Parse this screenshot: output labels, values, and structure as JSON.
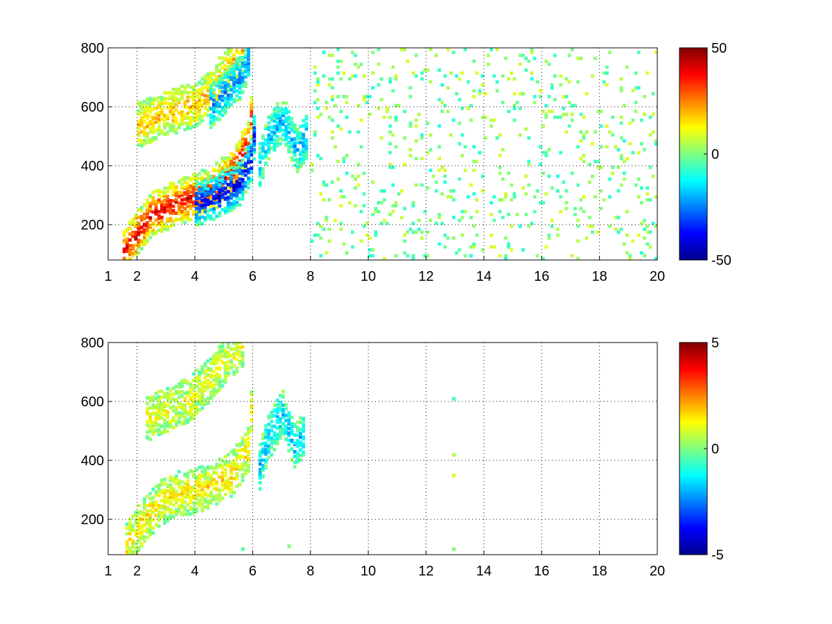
{
  "figure": {
    "background": "#ffffff",
    "colormap": "jet",
    "colormap_stops": [
      "#00008f",
      "#0000ff",
      "#00ffff",
      "#ffff00",
      "#ff0000",
      "#800000"
    ]
  },
  "chart_data": [
    {
      "type": "heatmap",
      "title": "",
      "xlabel": "",
      "ylabel": "",
      "xlim": [
        1,
        20
      ],
      "ylim": [
        80,
        800
      ],
      "x_ticks": [
        1,
        2,
        4,
        6,
        8,
        10,
        12,
        14,
        16,
        18,
        20
      ],
      "x_tick_labels": [
        "1",
        "2",
        "4",
        "6",
        "8",
        "10",
        "12",
        "14",
        "16",
        "18",
        "20"
      ],
      "y_ticks": [
        200,
        400,
        600,
        800
      ],
      "y_tick_labels": [
        "200",
        "400",
        "600",
        "800"
      ],
      "grid": true,
      "colorbar": {
        "clim": [
          -50,
          50
        ],
        "ticks": [
          -50,
          0,
          50
        ],
        "tick_labels": [
          "-50",
          "0",
          "50"
        ]
      },
      "features": [
        {
          "description": "positive band rising along lower branch",
          "value": 40,
          "points": [
            [
              1.5,
              110
            ],
            [
              2.5,
              240
            ],
            [
              3.5,
              280
            ],
            [
              4.5,
              320
            ],
            [
              5.3,
              380
            ],
            [
              5.8,
              480
            ],
            [
              5.9,
              560
            ]
          ]
        },
        {
          "description": "negative band just below lower branch",
          "value": -40,
          "points": [
            [
              4.0,
              270
            ],
            [
              4.8,
              300
            ],
            [
              5.5,
              340
            ],
            [
              5.9,
              420
            ],
            [
              6.0,
              500
            ]
          ]
        },
        {
          "description": "upper positive branch",
          "value": 20,
          "points": [
            [
              2.0,
              540
            ],
            [
              3.0,
              580
            ],
            [
              4.0,
              610
            ],
            [
              4.6,
              660
            ],
            [
              5.0,
              720
            ],
            [
              5.6,
              790
            ]
          ]
        },
        {
          "description": "upper negative branch",
          "value": -25,
          "points": [
            [
              4.5,
              600
            ],
            [
              5.0,
              650
            ],
            [
              5.5,
              700
            ],
            [
              5.8,
              760
            ]
          ]
        },
        {
          "description": "cyan cloud beyond x=6",
          "value": -20,
          "points": [
            [
              6.2,
              400
            ],
            [
              6.5,
              500
            ],
            [
              7.0,
              560
            ],
            [
              7.5,
              450
            ],
            [
              7.8,
              500
            ]
          ]
        }
      ],
      "sparse_noise": {
        "x_range": [
          8,
          20
        ],
        "values": [
          -10,
          10
        ],
        "density": 0.08
      }
    },
    {
      "type": "heatmap",
      "title": "",
      "xlabel": "",
      "ylabel": "",
      "xlim": [
        1,
        20
      ],
      "ylim": [
        80,
        800
      ],
      "x_ticks": [
        1,
        2,
        4,
        6,
        8,
        10,
        12,
        14,
        16,
        18,
        20
      ],
      "x_tick_labels": [
        "1",
        "2",
        "4",
        "6",
        "8",
        "10",
        "12",
        "14",
        "16",
        "18",
        "20"
      ],
      "y_ticks": [
        200,
        400,
        600,
        800
      ],
      "y_tick_labels": [
        "200",
        "400",
        "600",
        "800"
      ],
      "grid": true,
      "colorbar": {
        "clim": [
          -5,
          5
        ],
        "ticks": [
          -5,
          0,
          5
        ],
        "tick_labels": [
          "-5",
          "0",
          "5"
        ]
      },
      "features": [
        {
          "description": "lower branch, mostly near zero with warm patches",
          "value": 1.5,
          "points": [
            [
              1.6,
              110
            ],
            [
              2.2,
              200
            ],
            [
              2.8,
              260
            ],
            [
              3.5,
              290
            ],
            [
              4.5,
              310
            ],
            [
              5.3,
              360
            ],
            [
              5.8,
              440
            ],
            [
              5.9,
              560
            ]
          ]
        },
        {
          "description": "upper branch",
          "value": 1.0,
          "points": [
            [
              2.3,
              540
            ],
            [
              3.0,
              570
            ],
            [
              3.8,
              610
            ],
            [
              4.5,
              680
            ],
            [
              5.0,
              740
            ],
            [
              5.6,
              790
            ]
          ]
        },
        {
          "description": "cyan cluster beyond x=6",
          "value": -2.0,
          "points": [
            [
              6.2,
              380
            ],
            [
              6.5,
              480
            ],
            [
              7.0,
              560
            ],
            [
              7.4,
              450
            ],
            [
              7.7,
              490
            ]
          ]
        }
      ],
      "isolated_points": [
        [
          12.9,
          610
        ],
        [
          12.9,
          420
        ],
        [
          12.9,
          350
        ],
        [
          12.9,
          100
        ],
        [
          7.2,
          110
        ],
        [
          5.6,
          100
        ]
      ]
    }
  ]
}
